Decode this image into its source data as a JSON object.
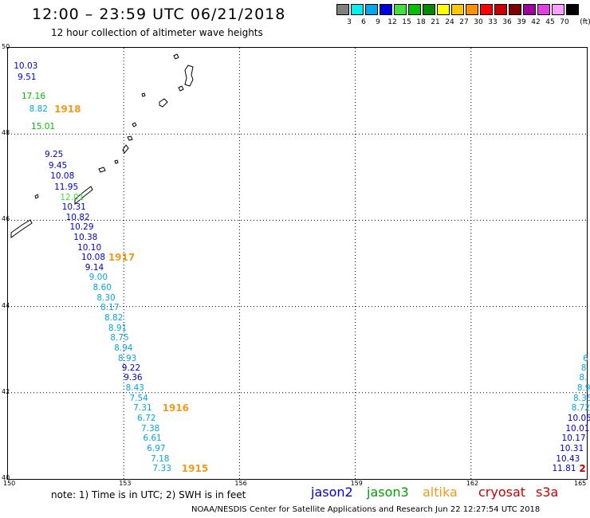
{
  "header": {
    "title": "12:00 – 23:59 UTC 06/21/2018",
    "subtitle": "12 hour collection of altimeter wave heights"
  },
  "color_scale": {
    "unit": "(ft)",
    "bins": [
      {
        "label": "3",
        "color": "#808080"
      },
      {
        "label": "6",
        "color": "#00f0f0"
      },
      {
        "label": "9",
        "color": "#00a8e8"
      },
      {
        "label": "12",
        "color": "#0000d8"
      },
      {
        "label": "15",
        "color": "#40e040"
      },
      {
        "label": "18",
        "color": "#00c000"
      },
      {
        "label": "21",
        "color": "#008c00"
      },
      {
        "label": "24",
        "color": "#ffff00"
      },
      {
        "label": "27",
        "color": "#ffc800"
      },
      {
        "label": "30",
        "color": "#ff9000"
      },
      {
        "label": "33",
        "color": "#ff0000"
      },
      {
        "label": "36",
        "color": "#c80000"
      },
      {
        "label": "39",
        "color": "#800000"
      },
      {
        "label": "42",
        "color": "#a000a0"
      },
      {
        "label": "45",
        "color": "#e040e0"
      },
      {
        "label": "70",
        "color": "#ffa0ff"
      },
      {
        "label": "",
        "color": "#000000"
      }
    ]
  },
  "map": {
    "lon_min": 150,
    "lon_max": 165,
    "lat_min": 40,
    "lat_max": 50,
    "lat_ticks": [
      "50",
      "48",
      "46",
      "44",
      "42",
      "40"
    ],
    "lon_ticks": [
      "150",
      "153",
      "156",
      "159",
      "162",
      "165"
    ],
    "observations": [
      {
        "v": "10.03",
        "lon": 150.15,
        "lat": 49.55,
        "color": "#0000d8"
      },
      {
        "v": "9.51",
        "lon": 150.25,
        "lat": 49.3,
        "color": "#0000d8"
      },
      {
        "v": "17.16",
        "lon": 150.35,
        "lat": 48.85,
        "color": "#00c000"
      },
      {
        "v": "8.82",
        "lon": 150.55,
        "lat": 48.55,
        "color": "#00a8e8"
      },
      {
        "v": "15.01",
        "lon": 150.6,
        "lat": 48.15,
        "color": "#00c000"
      },
      {
        "v": "9.25",
        "lon": 150.95,
        "lat": 47.5,
        "color": "#0000d8"
      },
      {
        "v": "9.45",
        "lon": 151.05,
        "lat": 47.25,
        "color": "#0000d8"
      },
      {
        "v": "10.08",
        "lon": 151.1,
        "lat": 47.0,
        "color": "#0000d8"
      },
      {
        "v": "11.95",
        "lon": 151.2,
        "lat": 46.75,
        "color": "#0000d8"
      },
      {
        "v": "12.01",
        "lon": 151.35,
        "lat": 46.5,
        "color": "#40e040"
      },
      {
        "v": "10.31",
        "lon": 151.4,
        "lat": 46.28,
        "color": "#0000d8"
      },
      {
        "v": "10.82",
        "lon": 151.5,
        "lat": 46.05,
        "color": "#0000d8"
      },
      {
        "v": "10.29",
        "lon": 151.6,
        "lat": 45.82,
        "color": "#0000d8"
      },
      {
        "v": "10.38",
        "lon": 151.7,
        "lat": 45.58,
        "color": "#0000d8"
      },
      {
        "v": "10.10",
        "lon": 151.8,
        "lat": 45.35,
        "color": "#0000d8"
      },
      {
        "v": "10.08",
        "lon": 151.9,
        "lat": 45.12,
        "color": "#0000d8"
      },
      {
        "v": "9.14",
        "lon": 152.0,
        "lat": 44.88,
        "color": "#0000d8"
      },
      {
        "v": "9.00",
        "lon": 152.1,
        "lat": 44.65,
        "color": "#00a8e8"
      },
      {
        "v": "8.60",
        "lon": 152.2,
        "lat": 44.42,
        "color": "#00a8e8"
      },
      {
        "v": "8.30",
        "lon": 152.3,
        "lat": 44.18,
        "color": "#00a8e8"
      },
      {
        "v": "8.17",
        "lon": 152.4,
        "lat": 43.95,
        "color": "#00a8e8"
      },
      {
        "v": "8.82",
        "lon": 152.5,
        "lat": 43.72,
        "color": "#00a8e8"
      },
      {
        "v": "8.91",
        "lon": 152.6,
        "lat": 43.48,
        "color": "#00a8e8"
      },
      {
        "v": "8.75",
        "lon": 152.65,
        "lat": 43.25,
        "color": "#00a8e8"
      },
      {
        "v": "8.94",
        "lon": 152.75,
        "lat": 43.02,
        "color": "#00a8e8"
      },
      {
        "v": "8.93",
        "lon": 152.85,
        "lat": 42.78,
        "color": "#00a8e8"
      },
      {
        "v": "9.22",
        "lon": 152.95,
        "lat": 42.55,
        "color": "#0000d8"
      },
      {
        "v": "9.36",
        "lon": 153.0,
        "lat": 42.32,
        "color": "#0000d8"
      },
      {
        "v": "8.43",
        "lon": 153.05,
        "lat": 42.08,
        "color": "#00a8e8"
      },
      {
        "v": "7.54",
        "lon": 153.15,
        "lat": 41.85,
        "color": "#00a8e8"
      },
      {
        "v": "7.31",
        "lon": 153.25,
        "lat": 41.62,
        "color": "#00a8e8"
      },
      {
        "v": "6.72",
        "lon": 153.35,
        "lat": 41.38,
        "color": "#00a8e8"
      },
      {
        "v": "7.38",
        "lon": 153.45,
        "lat": 41.15,
        "color": "#00a8e8"
      },
      {
        "v": "6.61",
        "lon": 153.5,
        "lat": 40.92,
        "color": "#00a8e8"
      },
      {
        "v": "6.97",
        "lon": 153.6,
        "lat": 40.68,
        "color": "#00a8e8"
      },
      {
        "v": "7.18",
        "lon": 153.7,
        "lat": 40.45,
        "color": "#00a8e8"
      },
      {
        "v": "7.33",
        "lon": 153.75,
        "lat": 40.22,
        "color": "#00a8e8"
      },
      {
        "v": "6",
        "lon": 164.9,
        "lat": 42.78,
        "color": "#00a8e8"
      },
      {
        "v": "8.",
        "lon": 164.85,
        "lat": 42.55,
        "color": "#00a8e8"
      },
      {
        "v": "8.",
        "lon": 164.8,
        "lat": 42.32,
        "color": "#00a8e8"
      },
      {
        "v": "8.9",
        "lon": 164.75,
        "lat": 42.08,
        "color": "#00a8e8"
      },
      {
        "v": "8.35",
        "lon": 164.65,
        "lat": 41.85,
        "color": "#00a8e8"
      },
      {
        "v": "8.72",
        "lon": 164.6,
        "lat": 41.62,
        "color": "#00a8e8"
      },
      {
        "v": "10.05",
        "lon": 164.5,
        "lat": 41.38,
        "color": "#0000d8"
      },
      {
        "v": "10.01",
        "lon": 164.45,
        "lat": 41.15,
        "color": "#0000d8"
      },
      {
        "v": "10.17",
        "lon": 164.35,
        "lat": 40.92,
        "color": "#0000d8"
      },
      {
        "v": "10.31",
        "lon": 164.3,
        "lat": 40.68,
        "color": "#0000d8"
      },
      {
        "v": "10.43",
        "lon": 164.2,
        "lat": 40.45,
        "color": "#0000d8"
      },
      {
        "v": "11.81",
        "lon": 164.1,
        "lat": 40.22,
        "color": "#0000d8"
      }
    ],
    "pass_times": [
      {
        "label": "1918",
        "lon": 151.2,
        "lat": 48.55
      },
      {
        "label": "1917",
        "lon": 152.6,
        "lat": 45.12
      },
      {
        "label": "1916",
        "lon": 154.0,
        "lat": 41.62
      },
      {
        "label": "1915",
        "lon": 154.5,
        "lat": 40.22
      },
      {
        "label": "2",
        "lon": 164.8,
        "lat": 40.22,
        "color": "#c80000"
      }
    ]
  },
  "footer": {
    "note": "note: 1) Time is in UTC; 2) SWH is in feet",
    "legend": [
      {
        "label": "jason2",
        "color": "#0000d8"
      },
      {
        "label": "jason3",
        "color": "#00a000"
      },
      {
        "label": "altika",
        "color": "#f39a1b"
      },
      {
        "label": "cryosat",
        "color": "#c80000"
      },
      {
        "label": "s3a",
        "color": "#c80000"
      }
    ],
    "credit": "NOAA/NESDIS Center for Satellite Applications and Research     Jun 22 12:27:54 UTC 2018"
  }
}
